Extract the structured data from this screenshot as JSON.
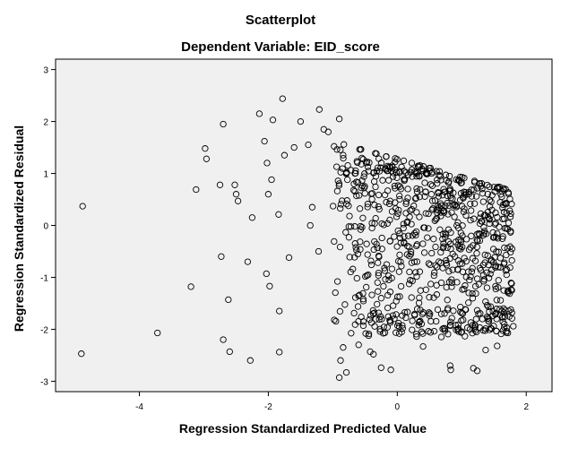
{
  "chart_data": {
    "type": "scatter",
    "title": "Scatterplot",
    "subtitle": "Dependent Variable: EID_score",
    "xlabel": "Regression Standardized Predicted Value",
    "ylabel": "Regression Standardized Residual",
    "xlim": [
      -5.3,
      2.4
    ],
    "ylim": [
      -3.2,
      3.2
    ],
    "xticks": [
      -4,
      -2,
      0,
      2
    ],
    "yticks": [
      -3,
      -2,
      -1,
      0,
      1,
      2,
      3
    ],
    "grid": false,
    "legend": "none",
    "colors": {
      "plot_background": "#f0f0f0",
      "marker_edge": "#000000",
      "frame": "#000000"
    },
    "outliers": [
      [
        -4.88,
        0.37
      ],
      [
        -4.9,
        -2.47
      ],
      [
        -3.72,
        -2.07
      ],
      [
        -3.2,
        -1.18
      ],
      [
        -3.12,
        0.69
      ],
      [
        -2.98,
        1.48
      ],
      [
        -2.96,
        1.28
      ],
      [
        -2.75,
        0.78
      ],
      [
        -2.73,
        -0.6
      ],
      [
        -2.7,
        1.95
      ],
      [
        -2.7,
        -2.2
      ],
      [
        -2.62,
        -1.43
      ],
      [
        -2.6,
        -2.43
      ],
      [
        -2.52,
        0.78
      ],
      [
        -2.5,
        0.6
      ],
      [
        -2.47,
        0.47
      ],
      [
        -2.32,
        -0.7
      ],
      [
        -2.28,
        -2.6
      ],
      [
        -2.25,
        0.15
      ],
      [
        -2.14,
        2.15
      ],
      [
        -2.06,
        1.62
      ],
      [
        -2.02,
        1.2
      ],
      [
        -2.03,
        -0.93
      ],
      [
        -2.0,
        0.6
      ],
      [
        -1.98,
        -1.17
      ],
      [
        -1.95,
        0.88
      ],
      [
        -1.93,
        2.03
      ],
      [
        -1.84,
        0.21
      ],
      [
        -1.83,
        -2.44
      ],
      [
        -1.83,
        -1.65
      ],
      [
        -1.78,
        2.44
      ],
      [
        -1.75,
        1.35
      ],
      [
        -1.68,
        -0.62
      ],
      [
        -1.6,
        1.5
      ],
      [
        -1.5,
        2.0
      ],
      [
        -1.38,
        1.55
      ],
      [
        -1.35,
        0.0
      ],
      [
        -1.32,
        0.35
      ],
      [
        -1.22,
        -0.5
      ],
      [
        -1.21,
        2.23
      ],
      [
        -1.14,
        1.85
      ],
      [
        -1.07,
        1.8
      ],
      [
        -0.9,
        -2.93
      ],
      [
        -0.9,
        2.05
      ],
      [
        -0.88,
        -2.6
      ],
      [
        -0.84,
        -2.35
      ],
      [
        -0.79,
        -2.83
      ],
      [
        -0.6,
        -2.3
      ],
      [
        -0.42,
        -2.43
      ],
      [
        -0.37,
        -2.48
      ],
      [
        -0.25,
        -2.74
      ],
      [
        -0.1,
        -2.78
      ],
      [
        0.03,
        -1.95
      ],
      [
        0.4,
        -2.33
      ],
      [
        0.82,
        -2.7
      ],
      [
        0.83,
        -2.78
      ],
      [
        1.18,
        -2.75
      ],
      [
        1.24,
        -2.8
      ],
      [
        1.37,
        -2.4
      ],
      [
        1.55,
        -2.32
      ],
      [
        1.7,
        -1.97
      ],
      [
        1.8,
        -1.94
      ],
      [
        1.76,
        -1.62
      ],
      [
        1.7,
        -0.85
      ],
      [
        1.78,
        -0.45
      ]
    ],
    "main_cloud": {
      "seed": 20240611,
      "count": 820,
      "x_range": [
        -1.0,
        1.78
      ],
      "y_band": [
        -2.1,
        1.6
      ],
      "note_pattern": "diagonal upper edge falling from about 1.6 at x=-0.9 to about 0.7 at x=1.7"
    }
  }
}
